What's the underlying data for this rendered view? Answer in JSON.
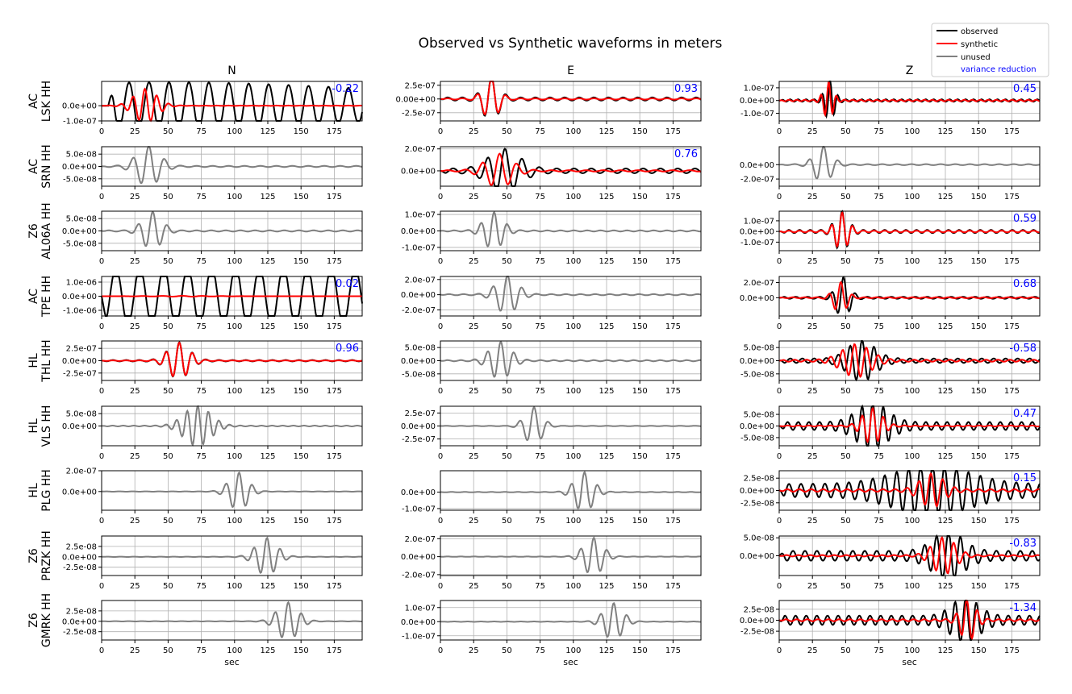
{
  "title": "Observed vs Synthetic waveforms in meters",
  "components": [
    "N",
    "E",
    "Z"
  ],
  "xlabel": "sec",
  "xticks": [
    "0",
    "25",
    "50",
    "75",
    "100",
    "125",
    "150",
    "175"
  ],
  "legend": {
    "placement": "top-right",
    "entries": [
      {
        "label": "observed",
        "color": "#000000"
      },
      {
        "label": "synthetic",
        "color": "#ff0000"
      },
      {
        "label": "unused",
        "color": "#808080"
      },
      {
        "label": "variance reduction",
        "color": "#0000ff",
        "text_only": true
      }
    ]
  },
  "colors": {
    "observed": "#000000",
    "synthetic": "#ff0000",
    "unused": "#808080",
    "vr": "#0000ff",
    "grid": "#b0b0b0"
  },
  "chart_data": {
    "type": "line",
    "xlim": [
      0,
      196
    ],
    "note_units": "displacement in meters",
    "stations": [
      {
        "net": "AC",
        "sta": "LSK HH"
      },
      {
        "net": "AC",
        "sta": "SRN HH"
      },
      {
        "net": "Z6",
        "sta": "AL06A HH"
      },
      {
        "net": "AC",
        "sta": "TPE HH"
      },
      {
        "net": "HL",
        "sta": "THL HH"
      },
      {
        "net": "HL",
        "sta": "VLS HH"
      },
      {
        "net": "HL",
        "sta": "PLG HH"
      },
      {
        "net": "Z6",
        "sta": "PRZK HH"
      },
      {
        "net": "Z6",
        "sta": "GMRK HH"
      }
    ],
    "panels": [
      [
        {
          "used": true,
          "vr": "-0.22",
          "ylim": [
            -1e-07,
            1.6e-07
          ],
          "yticks": [
            {
              "v": 0,
              "t": "0.0e+00"
            },
            {
              "v": -1e-07,
              "t": "-1.0e-07"
            }
          ],
          "obs": {
            "amp": 1e-07,
            "period": 15,
            "t0": 5,
            "t1": 196,
            "tp": 50,
            "w": 200,
            "floor": 0.55
          },
          "syn": {
            "amp": 1.1e-07,
            "period": 9,
            "tp": 33,
            "w": 12,
            "floor": 0.01,
            "phase": 0.6
          }
        },
        {
          "used": true,
          "vr": "0.93",
          "ylim": [
            -4e-07,
            3.2e-07
          ],
          "yticks": [
            {
              "v": 2.5e-07,
              "t": "2.5e-07"
            },
            {
              "v": 0,
              "t": "0.00e+00"
            },
            {
              "v": -2.5e-07,
              "t": "-2.5e-07"
            }
          ],
          "obs": {
            "amp": 4e-07,
            "period": 11,
            "t0": 0,
            "t1": 196,
            "tp": 38,
            "w": 8,
            "floor": 0.07
          },
          "syn": {
            "amp": 3.9e-07,
            "period": 11,
            "tp": 38,
            "w": 8,
            "floor": 0.03
          }
        },
        {
          "used": true,
          "vr": "0.45",
          "ylim": [
            -1.6e-07,
            1.5e-07
          ],
          "yticks": [
            {
              "v": 1e-07,
              "t": "1.0e-07"
            },
            {
              "v": 0,
              "t": "0.0e+00"
            },
            {
              "v": -1e-07,
              "t": "-1.0e-07"
            }
          ],
          "obs": {
            "amp": 1.5e-07,
            "period": 6,
            "t0": 0,
            "t1": 196,
            "tp": 38,
            "w": 5,
            "floor": 0.06
          },
          "syn": {
            "amp": 1.4e-07,
            "period": 6,
            "tp": 37,
            "w": 5,
            "floor": 0.04
          }
        }
      ],
      [
        {
          "used": false,
          "ylim": [
            -8e-08,
            8e-08
          ],
          "yticks": [
            {
              "v": 5e-08,
              "t": "5.0e-08"
            },
            {
              "v": 0,
              "t": "0.0e+00"
            },
            {
              "v": -5e-08,
              "t": "-5.0e-08"
            }
          ],
          "obs": {
            "amp": 8e-08,
            "period": 12,
            "t0": 0,
            "t1": 196,
            "tp": 35,
            "w": 12,
            "floor": 0.03
          }
        },
        {
          "used": true,
          "vr": "0.76",
          "ylim": [
            -1.4e-07,
            2.2e-07
          ],
          "yticks": [
            {
              "v": 2e-07,
              "t": "2.0e-07"
            },
            {
              "v": 0,
              "t": "0.0e+00"
            }
          ],
          "obs": {
            "amp": 1.8e-07,
            "period": 13,
            "t0": 0,
            "t1": 196,
            "tp": 48,
            "w": 16,
            "floor": 0.12
          },
          "syn": {
            "amp": 1.5e-07,
            "period": 13,
            "tp": 44,
            "w": 14,
            "floor": 0.04
          }
        },
        {
          "used": false,
          "ylim": [
            -3e-07,
            2.5e-07
          ],
          "yticks": [
            {
              "v": 0,
              "t": "0.0e+00"
            },
            {
              "v": -2e-07,
              "t": "-2.0e-07"
            }
          ],
          "obs": {
            "amp": 2.5e-07,
            "period": 11,
            "t0": 0,
            "t1": 196,
            "tp": 33,
            "w": 9,
            "floor": 0.03
          }
        }
      ],
      [
        {
          "used": false,
          "ylim": [
            -8e-08,
            8e-08
          ],
          "yticks": [
            {
              "v": 5e-08,
              "t": "5.0e-08"
            },
            {
              "v": 0,
              "t": "0.0e+00"
            },
            {
              "v": -5e-08,
              "t": "-5.0e-08"
            }
          ],
          "obs": {
            "amp": 7.5e-08,
            "period": 11,
            "t0": 0,
            "t1": 196,
            "tp": 38,
            "w": 10,
            "floor": 0.03
          }
        },
        {
          "used": false,
          "ylim": [
            -1.2e-07,
            1.2e-07
          ],
          "yticks": [
            {
              "v": 1e-07,
              "t": "1.0e-07"
            },
            {
              "v": 0,
              "t": "0.0e+00"
            },
            {
              "v": -1e-07,
              "t": "-1.0e-07"
            }
          ],
          "obs": {
            "amp": 1.1e-07,
            "period": 10,
            "t0": 0,
            "t1": 196,
            "tp": 40,
            "w": 10,
            "floor": 0.03
          }
        },
        {
          "used": true,
          "vr": "0.59",
          "ylim": [
            -1.8e-07,
            1.9e-07
          ],
          "yticks": [
            {
              "v": 1e-07,
              "t": "1.0e-07"
            },
            {
              "v": 0,
              "t": "0.0e+00"
            },
            {
              "v": -1e-07,
              "t": "-1.0e-07"
            }
          ],
          "obs": {
            "amp": 1.8e-07,
            "period": 8,
            "t0": 0,
            "t1": 196,
            "tp": 47,
            "w": 7,
            "floor": 0.08
          },
          "syn": {
            "amp": 1.7e-07,
            "period": 8,
            "tp": 47,
            "w": 7,
            "floor": 0.05
          }
        }
      ],
      [
        {
          "used": true,
          "vr": "0.02",
          "ylim": [
            -1.4e-06,
            1.4e-06
          ],
          "yticks": [
            {
              "v": 1e-06,
              "t": "1.0e-06"
            },
            {
              "v": 0,
              "t": "0.0e+00"
            },
            {
              "v": -1e-06,
              "t": "-1.0e-06"
            }
          ],
          "obs": {
            "amp": 1.25e-06,
            "period": 18,
            "t0": 0,
            "t1": 196,
            "tp": 100,
            "w": 400,
            "floor": 0.7
          },
          "syn": {
            "amp": 3e-08,
            "period": 15,
            "tp": 60,
            "w": 30,
            "floor": 0.02
          }
        },
        {
          "used": false,
          "ylim": [
            -2.8e-07,
            2.4e-07
          ],
          "yticks": [
            {
              "v": 2e-07,
              "t": "2.0e-07"
            },
            {
              "v": 0,
              "t": "0.0e+00"
            },
            {
              "v": -2e-07,
              "t": "-2.0e-07"
            }
          ],
          "obs": {
            "amp": 2.5e-07,
            "period": 11,
            "t0": 0,
            "t1": 196,
            "tp": 50,
            "w": 11,
            "floor": 0.03
          }
        },
        {
          "used": true,
          "vr": "0.68",
          "ylim": [
            -2.4e-07,
            2.8e-07
          ],
          "yticks": [
            {
              "v": 2e-07,
              "t": "2.0e-07"
            },
            {
              "v": 0,
              "t": "0.0e+00"
            }
          ],
          "obs": {
            "amp": 2.6e-07,
            "period": 9,
            "t0": 0,
            "t1": 196,
            "tp": 48,
            "w": 7,
            "floor": 0.05
          },
          "syn": {
            "amp": 2e-07,
            "period": 9,
            "tp": 46,
            "w": 7,
            "floor": 0.03
          }
        }
      ],
      [
        {
          "used": true,
          "vr": "0.96",
          "ylim": [
            -4e-07,
            4e-07
          ],
          "yticks": [
            {
              "v": 2.5e-07,
              "t": "2.5e-07"
            },
            {
              "v": 0,
              "t": "0.0e+00"
            },
            {
              "v": -2.5e-07,
              "t": "-2.5e-07"
            }
          ],
          "obs": {
            "amp": 3.6e-07,
            "period": 10,
            "t0": 0,
            "t1": 196,
            "tp": 58,
            "w": 11,
            "floor": 0.04
          },
          "syn": {
            "amp": 3.6e-07,
            "period": 10,
            "tp": 58,
            "w": 11,
            "floor": 0.02
          }
        },
        {
          "used": false,
          "ylim": [
            -7.5e-08,
            7.5e-08
          ],
          "yticks": [
            {
              "v": 5e-08,
              "t": "5.0e-08"
            },
            {
              "v": 0,
              "t": "0.0e+00"
            },
            {
              "v": -5e-08,
              "t": "-5.0e-08"
            }
          ],
          "obs": {
            "amp": 7e-08,
            "period": 10,
            "t0": 0,
            "t1": 196,
            "tp": 45,
            "w": 11,
            "floor": 0.03
          }
        },
        {
          "used": true,
          "vr": "-0.58",
          "ylim": [
            -7.5e-08,
            7.5e-08
          ],
          "yticks": [
            {
              "v": 5e-08,
              "t": "5.0e-08"
            },
            {
              "v": 0,
              "t": "0.0e+00"
            },
            {
              "v": -5e-08,
              "t": "-5.0e-08"
            }
          ],
          "obs": {
            "amp": 7e-08,
            "period": 9,
            "t0": 0,
            "t1": 196,
            "tp": 62,
            "w": 14,
            "floor": 0.12
          },
          "syn": {
            "amp": 6e-08,
            "period": 9,
            "tp": 58,
            "w": 15,
            "floor": 0.06,
            "phase": 1.2
          }
        }
      ],
      [
        {
          "used": false,
          "ylim": [
            -8e-08,
            8e-08
          ],
          "yticks": [
            {
              "v": 5e-08,
              "t": "5.0e-08"
            },
            {
              "v": 0,
              "t": "0.0e+00"
            }
          ],
          "obs": {
            "amp": 8e-08,
            "period": 8,
            "t0": 0,
            "t1": 196,
            "tp": 72,
            "w": 14,
            "floor": 0.02
          }
        },
        {
          "used": false,
          "ylim": [
            -3.8e-07,
            3.8e-07
          ],
          "yticks": [
            {
              "v": 2.5e-07,
              "t": "2.5e-07"
            },
            {
              "v": 0,
              "t": "0.0e+00"
            },
            {
              "v": -2.5e-07,
              "t": "-2.5e-07"
            }
          ],
          "obs": {
            "amp": 3.6e-07,
            "period": 11,
            "t0": 0,
            "t1": 196,
            "tp": 70,
            "w": 9,
            "floor": 0.01
          }
        },
        {
          "used": true,
          "vr": "0.47",
          "ylim": [
            -8.5e-08,
            8.5e-08
          ],
          "yticks": [
            {
              "v": 5e-08,
              "t": "5.0e-08"
            },
            {
              "v": 0,
              "t": "0.0e+00"
            },
            {
              "v": -5e-08,
              "t": "-5.0e-08"
            }
          ],
          "obs": {
            "amp": 8.5e-08,
            "period": 8,
            "t0": 0,
            "t1": 196,
            "tp": 70,
            "w": 16,
            "floor": 0.2
          },
          "syn": {
            "amp": 7.5e-08,
            "period": 8,
            "tp": 70,
            "w": 10,
            "floor": 0.03
          }
        }
      ],
      [
        {
          "used": false,
          "ylim": [
            -1.8e-07,
            2e-07
          ],
          "yticks": [
            {
              "v": 2e-07,
              "t": "2.0e-07"
            },
            {
              "v": 0,
              "t": "0.0e+00"
            }
          ],
          "obs": {
            "amp": 1.8e-07,
            "period": 10,
            "t0": 0,
            "t1": 196,
            "tp": 103,
            "w": 10,
            "floor": 0.01
          }
        },
        {
          "used": false,
          "ylim": [
            -1.1e-07,
            1.3e-07
          ],
          "yticks": [
            {
              "v": 0,
              "t": "0.0e+00"
            },
            {
              "v": -1e-07,
              "t": "-1.0e-07"
            }
          ],
          "obs": {
            "amp": 1.2e-07,
            "period": 10,
            "t0": 0,
            "t1": 196,
            "tp": 108,
            "w": 10,
            "floor": 0.01
          }
        },
        {
          "used": true,
          "vr": "0.15",
          "ylim": [
            -4e-08,
            4e-08
          ],
          "yticks": [
            {
              "v": 2.5e-08,
              "t": "2.5e-08"
            },
            {
              "v": 0,
              "t": "0.0e+00"
            },
            {
              "v": -2.5e-08,
              "t": "-2.5e-08"
            }
          ],
          "obs": {
            "amp": 3.8e-08,
            "period": 9,
            "t0": 0,
            "t1": 196,
            "tp": 115,
            "w": 40,
            "floor": 0.35
          },
          "syn": {
            "amp": 3.2e-08,
            "period": 9,
            "tp": 115,
            "w": 12,
            "floor": 0.08,
            "phase": 0.9
          }
        }
      ],
      [
        {
          "used": false,
          "ylim": [
            -4.5e-08,
            5e-08
          ],
          "yticks": [
            {
              "v": 2.5e-08,
              "t": "2.5e-08"
            },
            {
              "v": 0,
              "t": "0.0e+00"
            },
            {
              "v": -2.5e-08,
              "t": "-2.5e-08"
            }
          ],
          "obs": {
            "amp": 4.5e-08,
            "period": 10,
            "t0": 0,
            "t1": 196,
            "tp": 124,
            "w": 11,
            "floor": 0.01
          }
        },
        {
          "used": false,
          "ylim": [
            -2.1e-07,
            2.3e-07
          ],
          "yticks": [
            {
              "v": 2e-07,
              "t": "2.0e-07"
            },
            {
              "v": 0,
              "t": "0.0e+00"
            },
            {
              "v": -2e-07,
              "t": "-2.0e-07"
            }
          ],
          "obs": {
            "amp": 2.1e-07,
            "period": 10,
            "t0": 0,
            "t1": 196,
            "tp": 115,
            "w": 10,
            "floor": 0.01
          }
        },
        {
          "used": true,
          "vr": "-0.83",
          "ylim": [
            -5.5e-08,
            5.5e-08
          ],
          "yticks": [
            {
              "v": 5e-08,
              "t": "5.0e-08"
            },
            {
              "v": 0,
              "t": "0.0e+00"
            }
          ],
          "obs": {
            "amp": 5.5e-08,
            "period": 9,
            "t0": 0,
            "t1": 196,
            "tp": 127,
            "w": 16,
            "floor": 0.25
          },
          "syn": {
            "amp": 5e-08,
            "period": 9,
            "tp": 124,
            "w": 12,
            "floor": 0.04,
            "phase": 1.4
          }
        }
      ],
      [
        {
          "used": false,
          "ylim": [
            -4.5e-08,
            5e-08
          ],
          "yticks": [
            {
              "v": 2.5e-08,
              "t": "2.5e-08"
            },
            {
              "v": 0,
              "t": "0.0e+00"
            },
            {
              "v": -2.5e-08,
              "t": "-2.5e-08"
            }
          ],
          "obs": {
            "amp": 4.5e-08,
            "period": 10,
            "t0": 0,
            "t1": 196,
            "tp": 140,
            "w": 11,
            "floor": 0.01
          }
        },
        {
          "used": false,
          "ylim": [
            -1.3e-07,
            1.5e-07
          ],
          "yticks": [
            {
              "v": 1e-07,
              "t": "1.0e-07"
            },
            {
              "v": 0,
              "t": "0.0e+00"
            },
            {
              "v": -1e-07,
              "t": "-1.0e-07"
            }
          ],
          "obs": {
            "amp": 1.3e-07,
            "period": 10,
            "t0": 0,
            "t1": 196,
            "tp": 130,
            "w": 10,
            "floor": 0.01
          }
        },
        {
          "used": true,
          "vr": "-1.34",
          "ylim": [
            -4.5e-08,
            4.5e-08
          ],
          "yticks": [
            {
              "v": 2.5e-08,
              "t": "2.5e-08"
            },
            {
              "v": 0,
              "t": "0.0e+00"
            },
            {
              "v": -2.5e-08,
              "t": "-2.5e-08"
            }
          ],
          "obs": {
            "amp": 4.2e-08,
            "period": 8,
            "t0": 0,
            "t1": 196,
            "tp": 140,
            "w": 14,
            "floor": 0.25
          },
          "syn": {
            "amp": 4.5e-08,
            "period": 8,
            "tp": 142,
            "w": 8,
            "floor": 0.05,
            "phase": 1.0
          }
        }
      ]
    ]
  }
}
